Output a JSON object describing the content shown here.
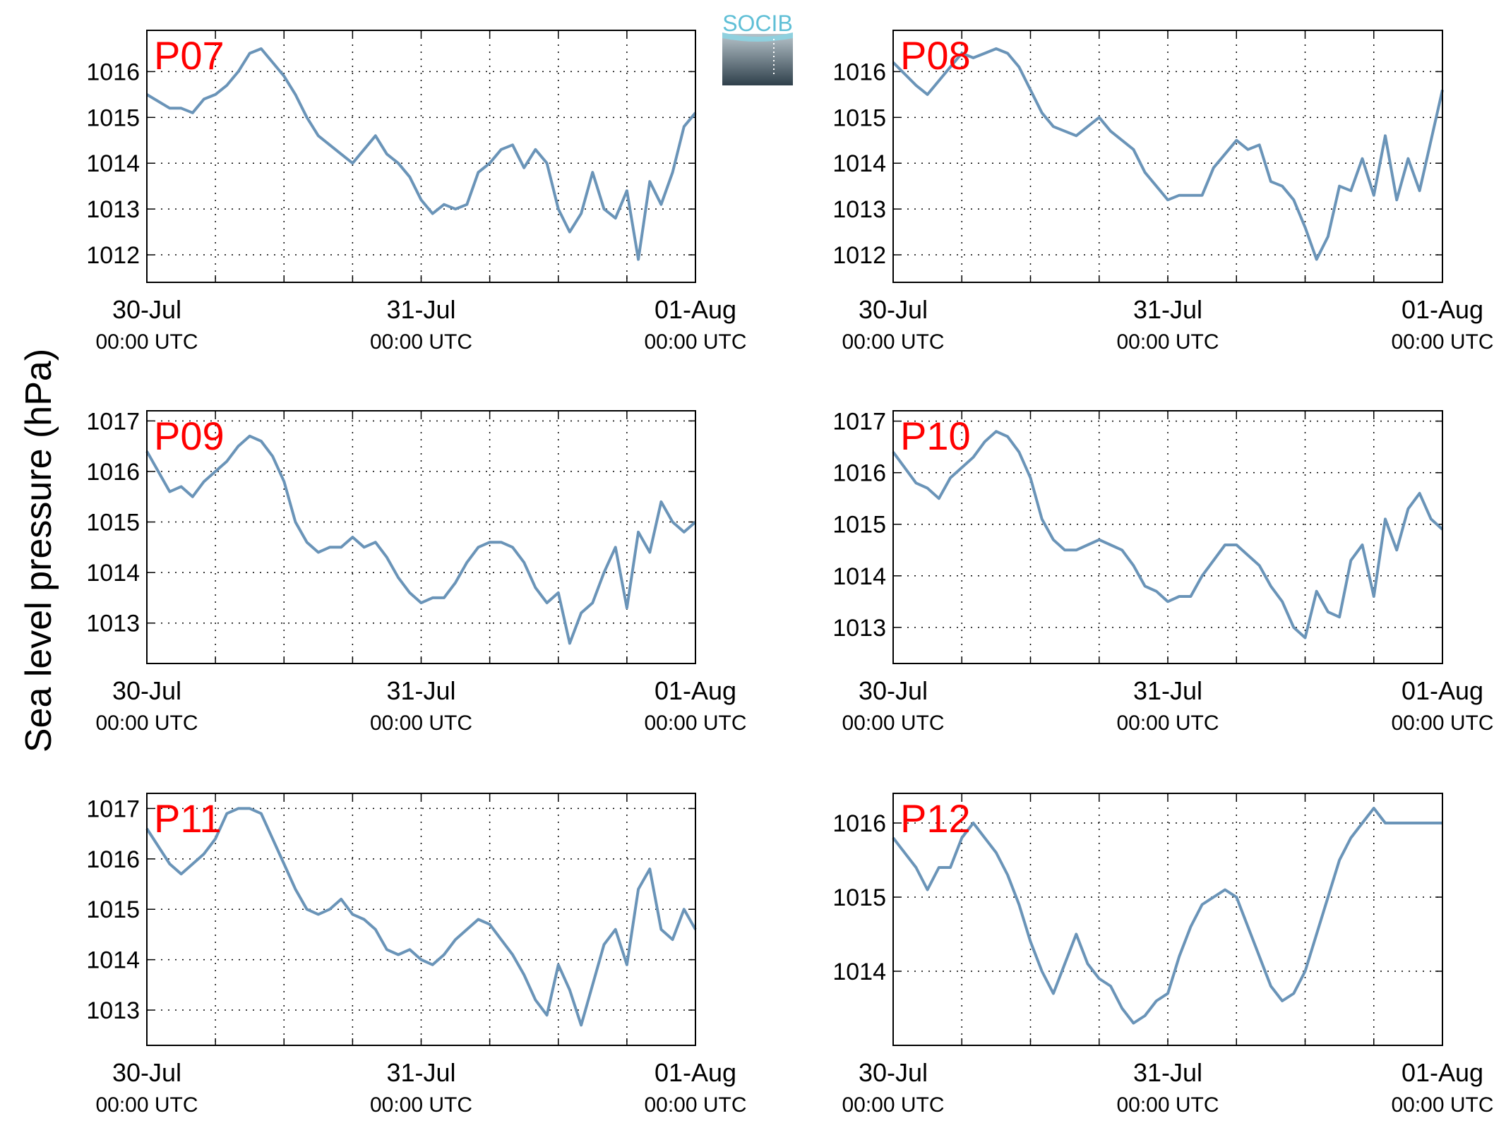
{
  "figure": {
    "ylabel": "Sea level pressure (hPa)",
    "logo_text": "SOCIB",
    "tick_time_label": "00:00 UTC",
    "line_color": "#6a94b8",
    "station_label_color": "#ff0000"
  },
  "chart_data": [
    {
      "type": "line",
      "station": "P07",
      "x_ticks": [
        "30-Jul",
        "31-Jul",
        "01-Aug"
      ],
      "ylim": [
        1011.4,
        1016.9
      ],
      "yticks": [
        1012,
        1013,
        1014,
        1015,
        1016
      ],
      "x_hours": [
        0,
        2,
        3,
        4,
        5,
        6,
        7,
        8,
        9,
        10,
        11,
        12,
        13,
        14,
        15,
        16,
        17,
        18,
        19,
        20,
        21,
        22,
        23,
        24,
        25,
        26,
        27,
        28,
        29,
        30,
        31,
        32,
        33,
        34,
        35,
        36,
        37,
        38,
        39,
        40,
        41,
        42,
        43,
        44,
        45,
        46,
        47,
        48
      ],
      "values": [
        1015.5,
        1015.2,
        1015.2,
        1015.1,
        1015.4,
        1015.5,
        1015.7,
        1016.0,
        1016.4,
        1016.5,
        1016.2,
        1015.9,
        1015.5,
        1015.0,
        1014.6,
        1014.4,
        1014.2,
        1014.0,
        1014.3,
        1014.6,
        1014.2,
        1014.0,
        1013.7,
        1013.2,
        1012.9,
        1013.1,
        1013.0,
        1013.1,
        1013.8,
        1014.0,
        1014.3,
        1014.4,
        1013.9,
        1014.3,
        1014.0,
        1013.0,
        1012.5,
        1012.9,
        1013.8,
        1013.0,
        1012.8,
        1013.4,
        1011.9,
        1013.6,
        1013.1,
        1013.8,
        1014.8,
        1015.1
      ]
    },
    {
      "type": "line",
      "station": "P08",
      "x_ticks": [
        "30-Jul",
        "31-Jul",
        "01-Aug"
      ],
      "ylim": [
        1011.4,
        1016.9
      ],
      "yticks": [
        1012,
        1013,
        1014,
        1015,
        1016
      ],
      "x_hours": [
        0,
        2,
        3,
        4,
        5,
        6,
        7,
        8,
        9,
        10,
        11,
        12,
        13,
        14,
        15,
        16,
        17,
        18,
        19,
        20,
        21,
        22,
        23,
        24,
        25,
        26,
        27,
        28,
        29,
        30,
        31,
        32,
        33,
        34,
        35,
        36,
        37,
        38,
        39,
        40,
        41,
        42,
        43,
        44,
        45,
        46,
        47,
        48
      ],
      "values": [
        1016.2,
        1015.7,
        1015.5,
        1015.8,
        1016.1,
        1016.4,
        1016.3,
        1016.4,
        1016.5,
        1016.4,
        1016.1,
        1015.6,
        1015.1,
        1014.8,
        1014.7,
        1014.6,
        1014.8,
        1015.0,
        1014.7,
        1014.5,
        1014.3,
        1013.8,
        1013.5,
        1013.2,
        1013.3,
        1013.3,
        1013.3,
        1013.9,
        1014.2,
        1014.5,
        1014.3,
        1014.4,
        1013.6,
        1013.5,
        1013.2,
        1012.6,
        1011.9,
        1012.4,
        1013.5,
        1013.4,
        1014.1,
        1013.3,
        1014.6,
        1013.2,
        1014.1,
        1013.4,
        1014.5,
        1015.6
      ]
    },
    {
      "type": "line",
      "station": "P09",
      "x_ticks": [
        "30-Jul",
        "31-Jul",
        "01-Aug"
      ],
      "ylim": [
        1012.2,
        1017.2
      ],
      "yticks": [
        1013,
        1014,
        1015,
        1016,
        1017
      ],
      "x_hours": [
        0,
        2,
        3,
        4,
        5,
        6,
        7,
        8,
        9,
        10,
        11,
        12,
        13,
        14,
        15,
        16,
        17,
        18,
        19,
        20,
        21,
        22,
        23,
        24,
        25,
        26,
        27,
        28,
        29,
        30,
        31,
        32,
        33,
        34,
        35,
        36,
        37,
        38,
        39,
        40,
        41,
        42,
        43,
        44,
        45,
        46,
        47,
        48
      ],
      "values": [
        1016.4,
        1015.6,
        1015.7,
        1015.5,
        1015.8,
        1016.0,
        1016.2,
        1016.5,
        1016.7,
        1016.6,
        1016.3,
        1015.8,
        1015.0,
        1014.6,
        1014.4,
        1014.5,
        1014.5,
        1014.7,
        1014.5,
        1014.6,
        1014.3,
        1013.9,
        1013.6,
        1013.4,
        1013.5,
        1013.5,
        1013.8,
        1014.2,
        1014.5,
        1014.6,
        1014.6,
        1014.5,
        1014.2,
        1013.7,
        1013.4,
        1013.6,
        1012.6,
        1013.2,
        1013.4,
        1014.0,
        1014.5,
        1013.3,
        1014.8,
        1014.4,
        1015.4,
        1015.0,
        1014.8,
        1015.0
      ]
    },
    {
      "type": "line",
      "station": "P10",
      "x_ticks": [
        "30-Jul",
        "31-Jul",
        "01-Aug"
      ],
      "ylim": [
        1012.3,
        1017.2
      ],
      "yticks": [
        1013,
        1014,
        1015,
        1016,
        1017
      ],
      "x_hours": [
        0,
        2,
        3,
        4,
        5,
        6,
        7,
        8,
        9,
        10,
        11,
        12,
        13,
        14,
        15,
        16,
        17,
        18,
        19,
        20,
        21,
        22,
        23,
        24,
        25,
        26,
        27,
        28,
        29,
        30,
        31,
        32,
        33,
        34,
        35,
        36,
        37,
        38,
        39,
        40,
        41,
        42,
        43,
        44,
        45,
        46,
        47,
        48
      ],
      "values": [
        1016.4,
        1015.8,
        1015.7,
        1015.5,
        1015.9,
        1016.1,
        1016.3,
        1016.6,
        1016.8,
        1016.7,
        1016.4,
        1015.9,
        1015.1,
        1014.7,
        1014.5,
        1014.5,
        1014.6,
        1014.7,
        1014.6,
        1014.5,
        1014.2,
        1013.8,
        1013.7,
        1013.5,
        1013.6,
        1013.6,
        1014.0,
        1014.3,
        1014.6,
        1014.6,
        1014.4,
        1014.2,
        1013.8,
        1013.5,
        1013.0,
        1012.8,
        1013.7,
        1013.3,
        1013.2,
        1014.3,
        1014.6,
        1013.6,
        1015.1,
        1014.5,
        1015.3,
        1015.6,
        1015.1,
        1014.9
      ]
    },
    {
      "type": "line",
      "station": "P11",
      "x_ticks": [
        "30-Jul",
        "31-Jul",
        "01-Aug"
      ],
      "ylim": [
        1012.3,
        1017.3
      ],
      "yticks": [
        1013,
        1014,
        1015,
        1016,
        1017
      ],
      "x_hours": [
        0,
        2,
        3,
        4,
        5,
        6,
        7,
        8,
        9,
        10,
        11,
        12,
        13,
        14,
        15,
        16,
        17,
        18,
        19,
        20,
        21,
        22,
        23,
        24,
        25,
        26,
        27,
        28,
        29,
        30,
        31,
        32,
        33,
        34,
        35,
        36,
        37,
        38,
        39,
        40,
        41,
        42,
        43,
        44,
        45,
        46,
        47,
        48
      ],
      "values": [
        1016.6,
        1015.9,
        1015.7,
        1015.9,
        1016.1,
        1016.4,
        1016.9,
        1017.0,
        1017.0,
        1016.9,
        1016.4,
        1015.9,
        1015.4,
        1015.0,
        1014.9,
        1015.0,
        1015.2,
        1014.9,
        1014.8,
        1014.6,
        1014.2,
        1014.1,
        1014.2,
        1014.0,
        1013.9,
        1014.1,
        1014.4,
        1014.6,
        1014.8,
        1014.7,
        1014.4,
        1014.1,
        1013.7,
        1013.2,
        1012.9,
        1013.9,
        1013.4,
        1012.7,
        1013.5,
        1014.3,
        1014.6,
        1013.9,
        1015.4,
        1015.8,
        1014.6,
        1014.4,
        1015.0,
        1014.6
      ]
    },
    {
      "type": "line",
      "station": "P12",
      "x_ticks": [
        "30-Jul",
        "31-Jul",
        "01-Aug"
      ],
      "ylim": [
        1013.0,
        1016.4
      ],
      "yticks": [
        1014,
        1015,
        1016
      ],
      "x_hours": [
        0,
        2,
        3,
        4,
        5,
        6,
        7,
        8,
        9,
        10,
        11,
        12,
        13,
        14,
        15,
        16,
        17,
        18,
        19,
        20,
        21,
        22,
        23,
        24,
        25,
        26,
        27,
        28,
        29,
        30,
        31,
        32,
        33,
        34,
        35,
        36,
        37,
        38,
        39,
        40,
        41,
        42,
        43,
        44,
        45,
        46,
        47,
        48
      ],
      "values": [
        1015.8,
        1015.4,
        1015.1,
        1015.4,
        1015.4,
        1015.8,
        1016.0,
        1015.8,
        1015.6,
        1015.3,
        1014.9,
        1014.4,
        1014.0,
        1013.7,
        1014.1,
        1014.5,
        1014.1,
        1013.9,
        1013.8,
        1013.5,
        1013.3,
        1013.4,
        1013.6,
        1013.7,
        1014.2,
        1014.6,
        1014.9,
        1015.0,
        1015.1,
        1015.0,
        1014.6,
        1014.2,
        1013.8,
        1013.6,
        1013.7,
        1014.0,
        1014.5,
        1015.0,
        1015.5,
        1015.8,
        1016.0,
        1016.2,
        1016.0,
        1016.0,
        1016.0,
        1016.0,
        1016.0,
        1016.0
      ]
    }
  ]
}
